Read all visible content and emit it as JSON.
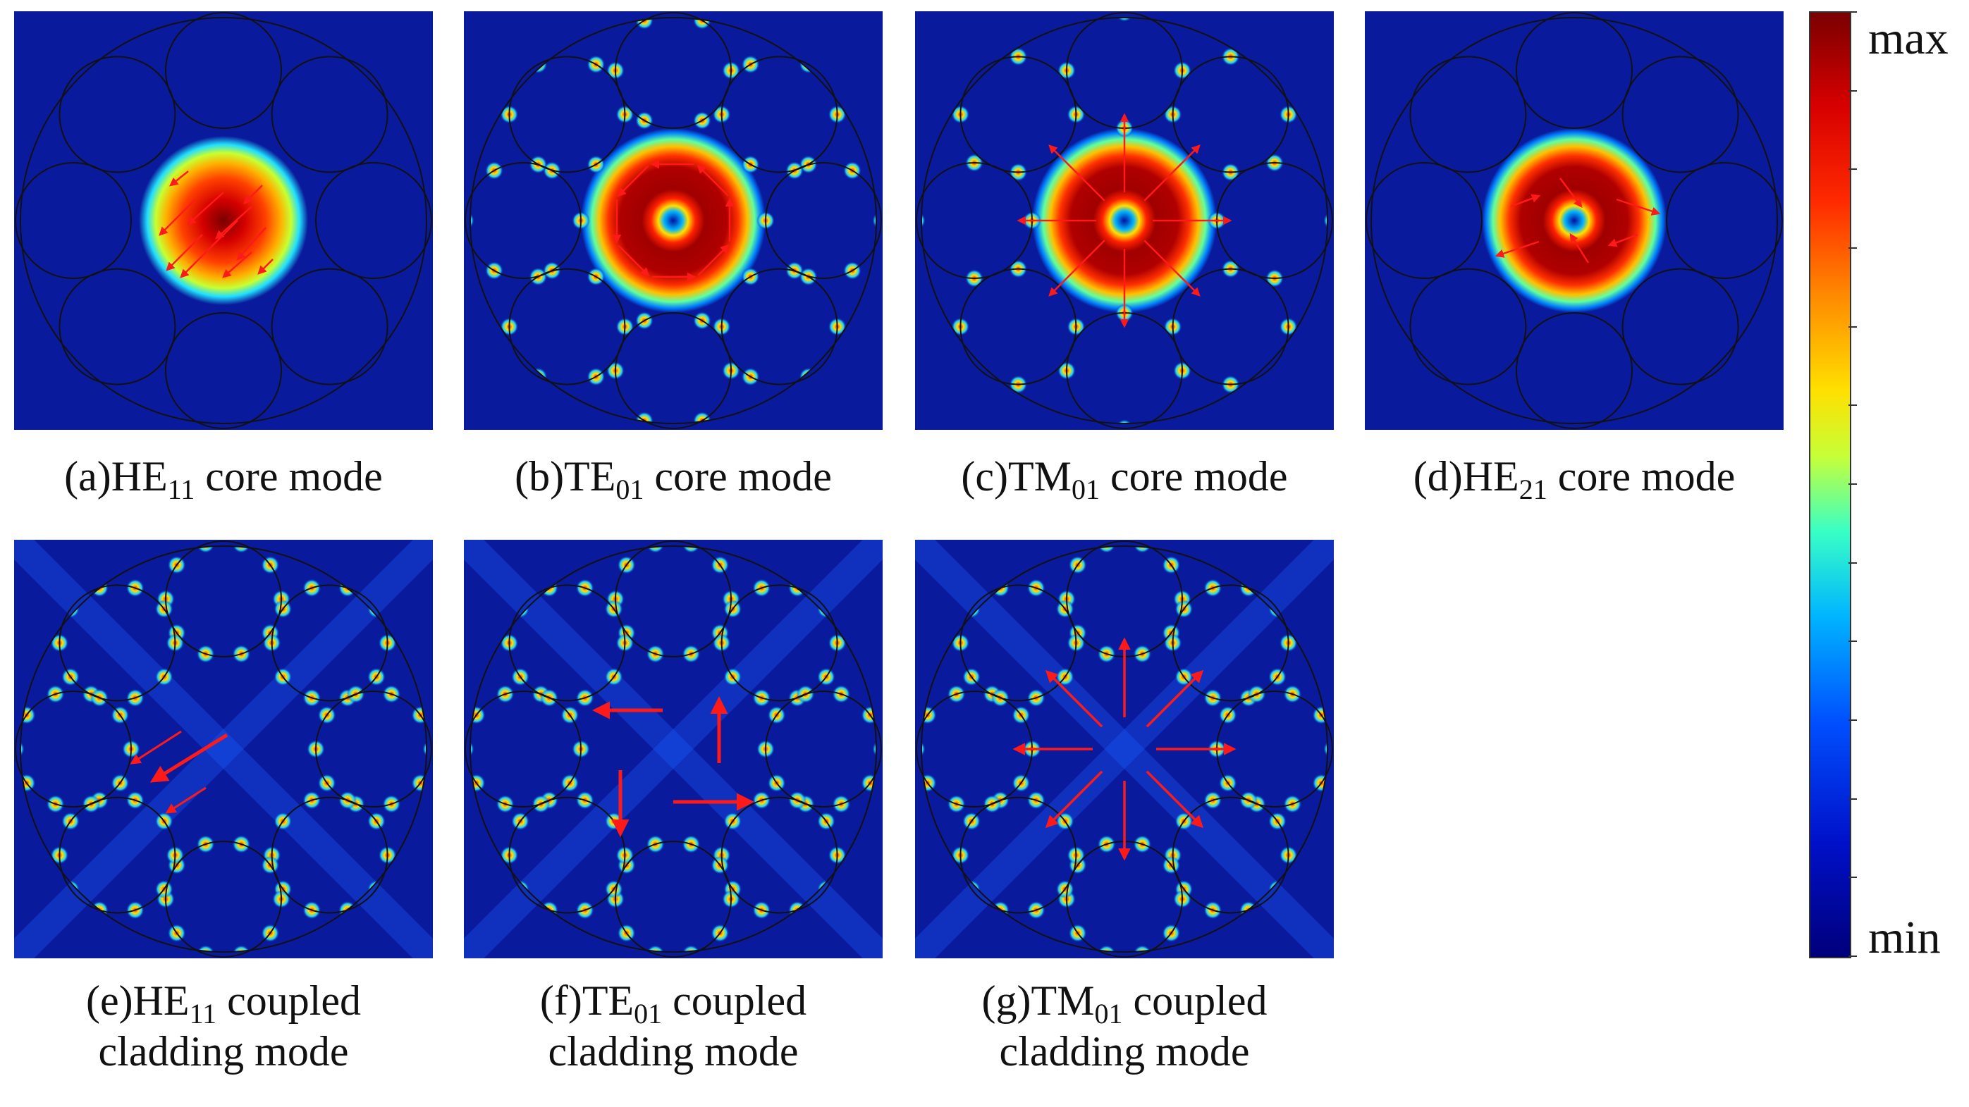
{
  "colorbar": {
    "max_label": "max",
    "min_label": "min"
  },
  "panels": [
    {
      "id": "a",
      "prefix": "(a)HE",
      "sub": "11",
      "suffix": " core mode",
      "line2": ""
    },
    {
      "id": "b",
      "prefix": "(b)TE",
      "sub": "01",
      "suffix": " core mode",
      "line2": ""
    },
    {
      "id": "c",
      "prefix": "(c)TM",
      "sub": "01",
      "suffix": " core mode",
      "line2": ""
    },
    {
      "id": "d",
      "prefix": "(d)HE",
      "sub": "21",
      "suffix": " core mode",
      "line2": ""
    },
    {
      "id": "e",
      "prefix": "(e)HE",
      "sub": "11",
      "suffix": " coupled",
      "line2": "cladding mode"
    },
    {
      "id": "f",
      "prefix": "(f)TE",
      "sub": "01",
      "suffix": " coupled",
      "line2": "cladding mode"
    },
    {
      "id": "g",
      "prefix": "(g)TM",
      "sub": "01",
      "suffix": " coupled",
      "line2": "cladding mode"
    }
  ],
  "colors": {
    "background_field": "#0a1a9c",
    "arrow": "#ff1a1a",
    "outline": "#111111"
  }
}
